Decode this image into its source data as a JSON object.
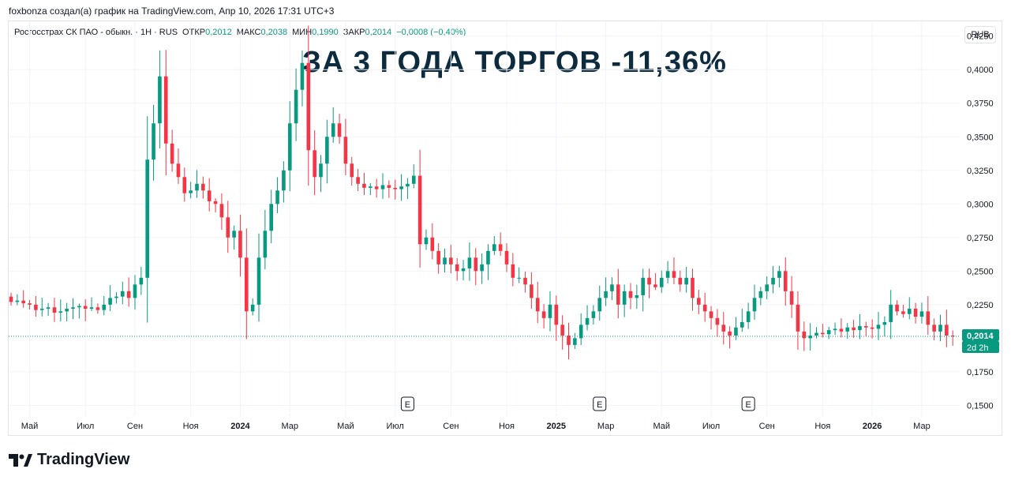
{
  "attribution": "foxbonza создал(а) график на TradingView.com, Апр 10, 2026 17:31 UTC+3",
  "legend": {
    "symbol": "Росгосстрах СК ПАО - обыкн. · 1Н · RUS",
    "open_label": "ОТКР",
    "open_value": "0,2012",
    "high_label": "МАКС",
    "high_value": "0,2038",
    "low_label": "МИН",
    "low_value": "0,1990",
    "close_label": "ЗАКР",
    "close_value": "0,2014",
    "change": "−0,0008 (−0,40%)"
  },
  "currency_button": "RUB",
  "headline": "ЗА 3 ГОДА ТОРГОВ -11,36%",
  "price_badge": {
    "price": "0,2014",
    "countdown": "2d 2h"
  },
  "earnings_marker_label": "E",
  "brand": "TradingView",
  "colors": {
    "up": "#089981",
    "down": "#f23645",
    "grid": "#f0f3fa",
    "badge": "#089981",
    "title": "#0d2b3e"
  },
  "chart_data": {
    "type": "candlestick",
    "y_axis_ticks": [
      "0,4250",
      "0,4000",
      "0,3750",
      "0,3500",
      "0,3250",
      "0,3000",
      "0,2750",
      "0,2500",
      "0,2250",
      "0,1750",
      "0,1500"
    ],
    "y_axis_tick_values": [
      0.425,
      0.4,
      0.375,
      0.35,
      0.325,
      0.3,
      0.275,
      0.25,
      0.225,
      0.175,
      0.15
    ],
    "ylim": [
      0.142,
      0.436
    ],
    "x_axis_ticks": [
      {
        "label": "Май",
        "i": 3,
        "bold": false
      },
      {
        "label": "Июл",
        "i": 12,
        "bold": false
      },
      {
        "label": "Сен",
        "i": 20,
        "bold": false
      },
      {
        "label": "Ноя",
        "i": 29,
        "bold": false
      },
      {
        "label": "2024",
        "i": 37,
        "bold": true
      },
      {
        "label": "Мар",
        "i": 45,
        "bold": false
      },
      {
        "label": "Май",
        "i": 54,
        "bold": false
      },
      {
        "label": "Июл",
        "i": 62,
        "bold": false
      },
      {
        "label": "Сен",
        "i": 71,
        "bold": false
      },
      {
        "label": "Ноя",
        "i": 80,
        "bold": false
      },
      {
        "label": "2025",
        "i": 88,
        "bold": true
      },
      {
        "label": "Мар",
        "i": 96,
        "bold": false
      },
      {
        "label": "Май",
        "i": 105,
        "bold": false
      },
      {
        "label": "Июл",
        "i": 113,
        "bold": false
      },
      {
        "label": "Сен",
        "i": 122,
        "bold": false
      },
      {
        "label": "Ноя",
        "i": 131,
        "bold": false
      },
      {
        "label": "2026",
        "i": 139,
        "bold": true
      },
      {
        "label": "Мар",
        "i": 147,
        "bold": false
      }
    ],
    "earnings_markers": [
      64,
      95,
      119
    ],
    "last_price": 0.2014,
    "closes": [
      0.227,
      0.228,
      0.226,
      0.225,
      0.221,
      0.222,
      0.223,
      0.219,
      0.22,
      0.222,
      0.223,
      0.224,
      0.222,
      0.223,
      0.221,
      0.225,
      0.23,
      0.231,
      0.235,
      0.23,
      0.24,
      0.245,
      0.333,
      0.36,
      0.395,
      0.345,
      0.33,
      0.32,
      0.308,
      0.31,
      0.315,
      0.31,
      0.302,
      0.3,
      0.29,
      0.275,
      0.28,
      0.26,
      0.22,
      0.225,
      0.26,
      0.28,
      0.3,
      0.31,
      0.325,
      0.36,
      0.385,
      0.405,
      0.34,
      0.32,
      0.33,
      0.35,
      0.36,
      0.35,
      0.33,
      0.32,
      0.315,
      0.312,
      0.313,
      0.311,
      0.314,
      0.312,
      0.311,
      0.313,
      0.315,
      0.321,
      0.27,
      0.275,
      0.265,
      0.255,
      0.26,
      0.255,
      0.25,
      0.252,
      0.26,
      0.25,
      0.255,
      0.265,
      0.27,
      0.265,
      0.255,
      0.245,
      0.245,
      0.24,
      0.23,
      0.22,
      0.215,
      0.225,
      0.21,
      0.202,
      0.195,
      0.2,
      0.21,
      0.215,
      0.22,
      0.23,
      0.235,
      0.24,
      0.225,
      0.235,
      0.23,
      0.232,
      0.245,
      0.24,
      0.238,
      0.245,
      0.25,
      0.245,
      0.24,
      0.245,
      0.23,
      0.225,
      0.22,
      0.215,
      0.21,
      0.205,
      0.202,
      0.208,
      0.212,
      0.22,
      0.23,
      0.235,
      0.24,
      0.245,
      0.25,
      0.235,
      0.225,
      0.205,
      0.2,
      0.202,
      0.204,
      0.203,
      0.206,
      0.207,
      0.205,
      0.208,
      0.206,
      0.209,
      0.208,
      0.207,
      0.21,
      0.212,
      0.225,
      0.22,
      0.218,
      0.222,
      0.216,
      0.22,
      0.21,
      0.205,
      0.21,
      0.202,
      0.2014
    ]
  }
}
